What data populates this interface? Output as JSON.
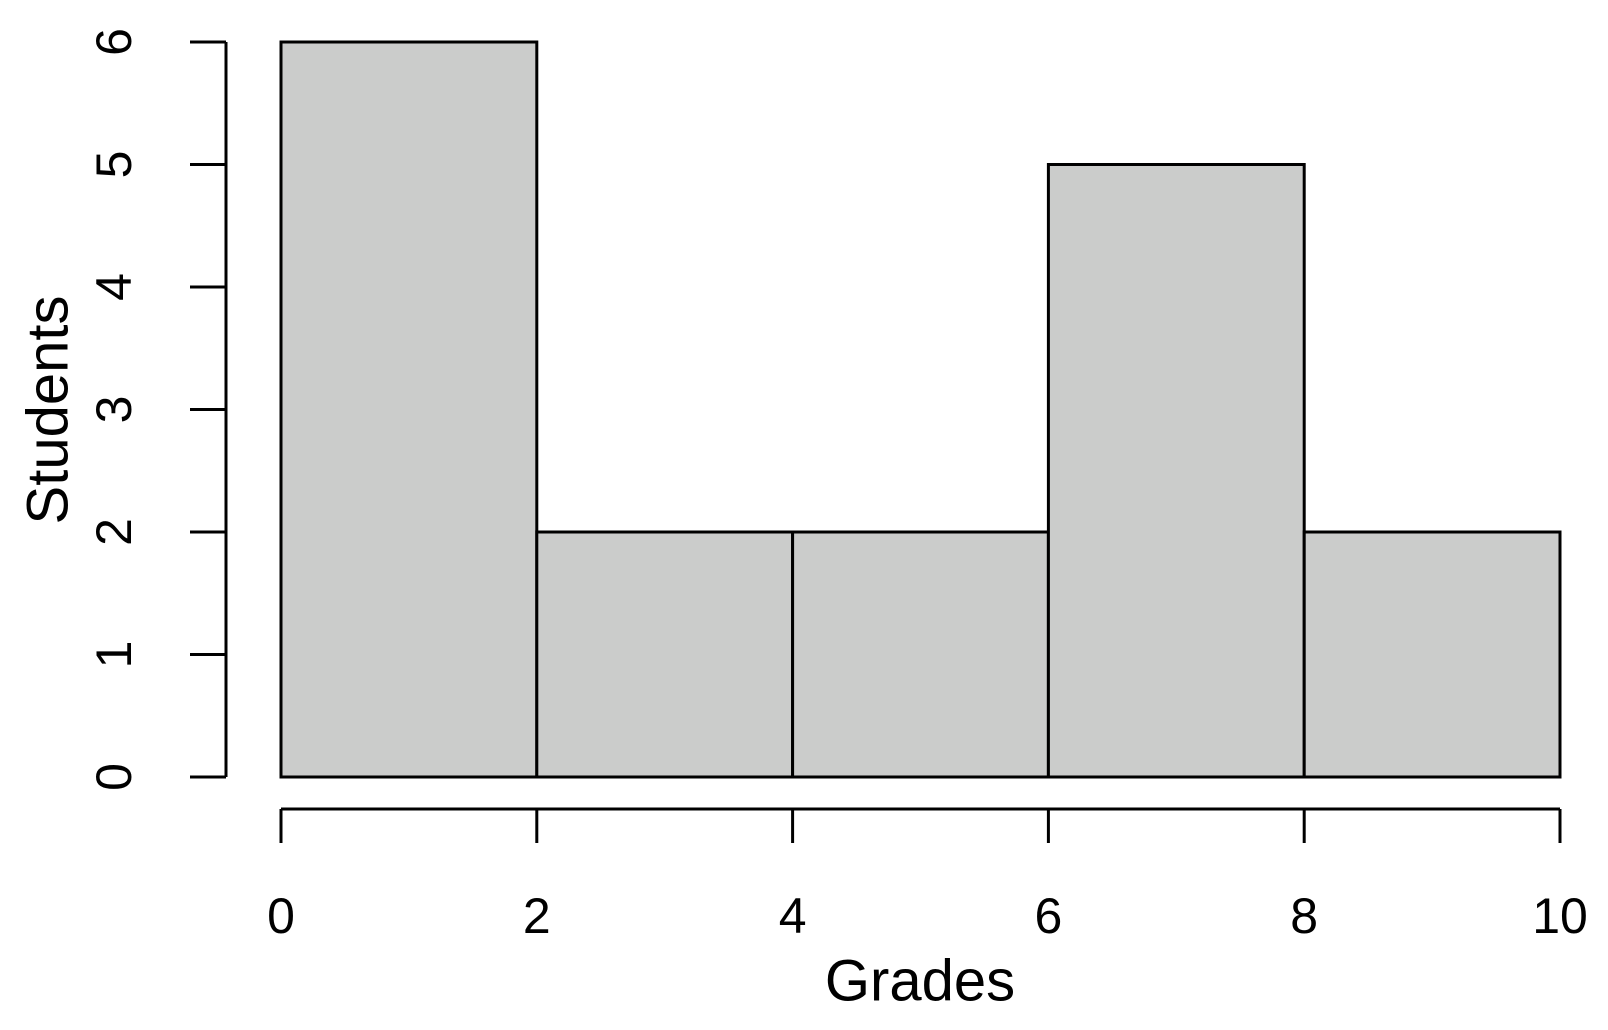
{
  "chart_data": {
    "type": "histogram",
    "xlabel": "Grades",
    "ylabel": "Students",
    "bins": [
      0,
      2,
      4,
      6,
      8,
      10
    ],
    "values": [
      6,
      2,
      2,
      5,
      2
    ],
    "color": "#cbcccb",
    "xlim": [
      0,
      10
    ],
    "xticks": [
      0,
      2,
      4,
      6,
      8,
      10
    ],
    "ylim": [
      0,
      6
    ],
    "yticks": [
      0,
      1,
      2,
      3,
      4,
      5,
      6
    ]
  }
}
